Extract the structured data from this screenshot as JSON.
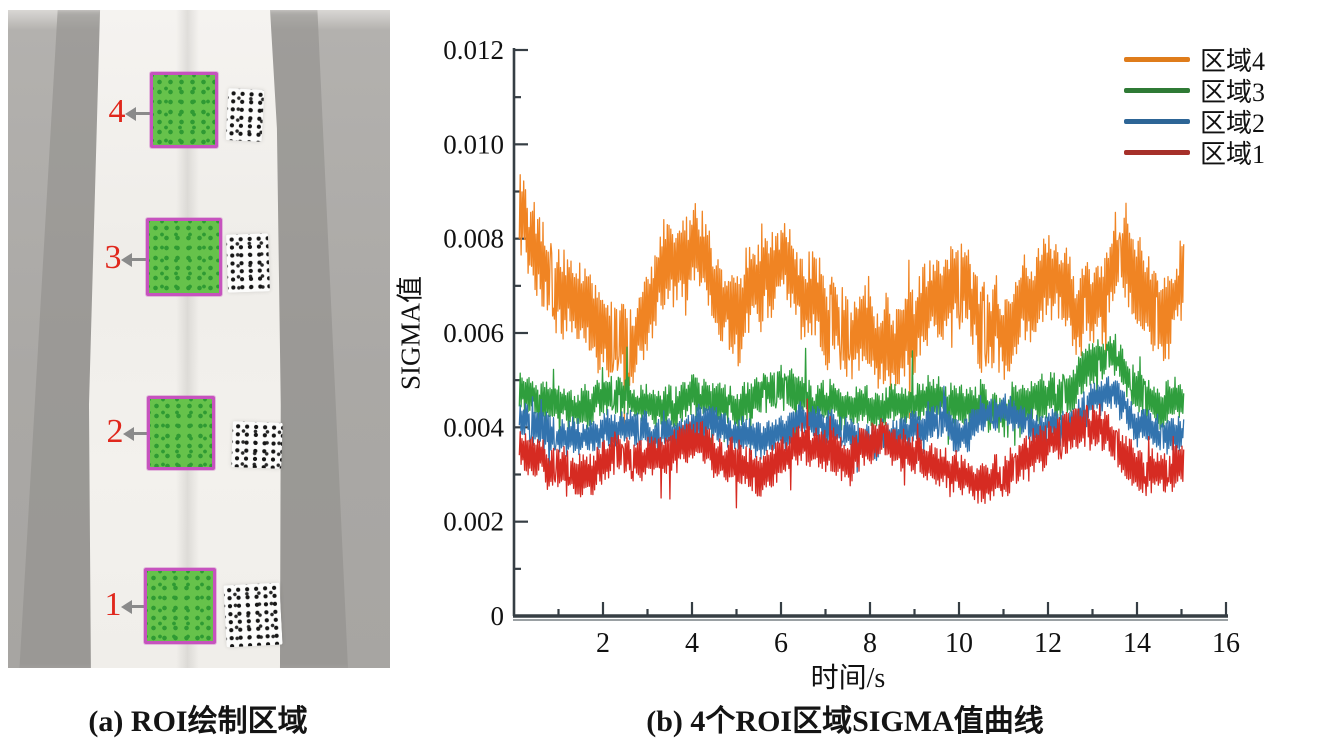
{
  "figure": {
    "panel_a": {
      "caption": "(a) ROI绘制区域",
      "rois": [
        {
          "label": "4"
        },
        {
          "label": "3"
        },
        {
          "label": "2"
        },
        {
          "label": "1"
        }
      ],
      "colors": {
        "roi_fill": "#66c24b",
        "roi_dot": "#2f9a33",
        "roi_border": "#c653be",
        "label_color": "#e0271c",
        "arrow_color": "#8a8a8a",
        "speckle_dot": "#1a1a1a"
      }
    },
    "panel_b": {
      "caption": "(b) 4个ROI区域SIGMA值曲线"
    }
  },
  "chart_data": {
    "type": "line",
    "title": "",
    "xlabel": "时间/s",
    "ylabel": "SIGMA值",
    "xlim": [
      0,
      16
    ],
    "ylim": [
      0,
      0.012
    ],
    "x_ticks": [
      2,
      4,
      6,
      8,
      10,
      12,
      14,
      16
    ],
    "minor_x_step": 1,
    "y_ticks": [
      0,
      0.002,
      0.004,
      0.006,
      0.008,
      0.01,
      0.012
    ],
    "y_tick_labels": [
      "0",
      "0.002",
      "0.004",
      "0.006",
      "0.008",
      "0.010",
      "0.012"
    ],
    "minor_y_step": 0.001,
    "grid": false,
    "legend_position": "top-right",
    "axis_color": "#363e44",
    "t_start": 0.12,
    "t_end": 15.05,
    "baseline_t_step": 0.5,
    "points_per_series": 760,
    "noise_seed": 20240613,
    "legend_order": [
      "区域4",
      "区域3",
      "区域2",
      "区域1"
    ],
    "series": [
      {
        "name": "区域4",
        "color": "#f08423",
        "legend_color": "#df7c1b",
        "draw_order": 1,
        "noise_amp": 0.0011,
        "baseline": [
          0.0088,
          0.0077,
          0.007,
          0.0066,
          0.0061,
          0.0058,
          0.0064,
          0.0077,
          0.0079,
          0.0069,
          0.0063,
          0.0069,
          0.0074,
          0.007,
          0.0064,
          0.0061,
          0.0059,
          0.0057,
          0.0061,
          0.0069,
          0.007,
          0.0063,
          0.0061,
          0.0067,
          0.0072,
          0.0068,
          0.0066,
          0.0076,
          0.0072,
          0.0063,
          0.0071
        ]
      },
      {
        "name": "区域3",
        "color": "#2f9e3d",
        "legend_color": "#2f7a35",
        "draw_order": 2,
        "noise_amp": 0.00055,
        "baseline": [
          0.005,
          0.0047,
          0.0045,
          0.0044,
          0.0046,
          0.0047,
          0.0045,
          0.0044,
          0.0047,
          0.0046,
          0.0045,
          0.0046,
          0.0049,
          0.0047,
          0.0045,
          0.0044,
          0.0043,
          0.0044,
          0.0046,
          0.0047,
          0.0045,
          0.0044,
          0.0043,
          0.0045,
          0.0046,
          0.0048,
          0.0054,
          0.0056,
          0.0048,
          0.0044,
          0.0046
        ]
      },
      {
        "name": "区域2",
        "color": "#3273ae",
        "legend_color": "#2d6596",
        "draw_order": 3,
        "noise_amp": 0.00045,
        "baseline": [
          0.0042,
          0.004,
          0.0039,
          0.0038,
          0.0039,
          0.004,
          0.0039,
          0.0038,
          0.004,
          0.0041,
          0.0039,
          0.0038,
          0.0039,
          0.0042,
          0.004,
          0.0038,
          0.0037,
          0.0038,
          0.004,
          0.0041,
          0.0039,
          0.0042,
          0.0043,
          0.0041,
          0.0039,
          0.004,
          0.0046,
          0.0048,
          0.0041,
          0.0038,
          0.0039
        ]
      },
      {
        "name": "区域1",
        "color": "#d62b22",
        "legend_color": "#a6302a",
        "draw_order": 4,
        "noise_amp": 0.00055,
        "baseline": [
          0.0036,
          0.0034,
          0.0031,
          0.0029,
          0.0032,
          0.0034,
          0.0033,
          0.0035,
          0.0036,
          0.0034,
          0.0032,
          0.003,
          0.0033,
          0.0036,
          0.0035,
          0.0033,
          0.0036,
          0.0038,
          0.0035,
          0.0033,
          0.003,
          0.0027,
          0.003,
          0.0034,
          0.0036,
          0.0039,
          0.0041,
          0.0037,
          0.0031,
          0.003,
          0.0032
        ]
      }
    ]
  }
}
